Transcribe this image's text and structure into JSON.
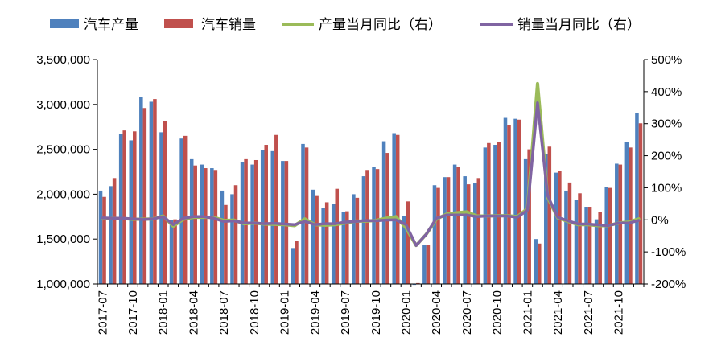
{
  "colors": {
    "production_bar": "#4F81BD",
    "sales_bar": "#C0504D",
    "production_yoy_line": "#9BBB59",
    "sales_yoy_line": "#8064A2",
    "axis": "#000000"
  },
  "chart_data": {
    "type": "bar",
    "legend": [
      "汽车产量",
      "汽车销量",
      "产量当月同比（右）",
      "销量当月同比（右）"
    ],
    "legend_position": "top",
    "grid": false,
    "y_left": {
      "min": 1000000,
      "max": 3500000,
      "step": 500000,
      "tick_labels": [
        "1,000,000",
        "1,500,000",
        "2,000,000",
        "2,500,000",
        "3,000,000",
        "3,500,000"
      ]
    },
    "y_right": {
      "min": -200,
      "max": 500,
      "step": 100,
      "unit": "%",
      "tick_labels": [
        "-200%",
        "-100%",
        "0%",
        "100%",
        "200%",
        "300%",
        "400%",
        "500%"
      ]
    },
    "x_tick_labels": [
      "2017-07",
      "2017-10",
      "2018-01",
      "2018-04",
      "2018-07",
      "2018-10",
      "2019-01",
      "2019-04",
      "2019-07",
      "2019-10",
      "2020-01",
      "2020-04",
      "2020-07",
      "2020-10",
      "2021-01",
      "2021-04",
      "2021-07",
      "2021-10"
    ],
    "x_tick_every": 3,
    "categories": [
      "2017-07",
      "2017-08",
      "2017-09",
      "2017-10",
      "2017-11",
      "2017-12",
      "2018-01",
      "2018-02",
      "2018-03",
      "2018-04",
      "2018-05",
      "2018-06",
      "2018-07",
      "2018-08",
      "2018-09",
      "2018-10",
      "2018-11",
      "2018-12",
      "2019-01",
      "2019-02",
      "2019-03",
      "2019-04",
      "2019-05",
      "2019-06",
      "2019-07",
      "2019-08",
      "2019-09",
      "2019-10",
      "2019-11",
      "2019-12",
      "2020-01",
      "2020-02",
      "2020-03",
      "2020-04",
      "2020-05",
      "2020-06",
      "2020-07",
      "2020-08",
      "2020-09",
      "2020-10",
      "2020-11",
      "2020-12",
      "2021-01",
      "2021-02",
      "2021-03",
      "2021-04",
      "2021-05",
      "2021-06",
      "2021-07",
      "2021-08",
      "2021-09",
      "2021-10",
      "2021-11",
      "2021-12"
    ],
    "series": [
      {
        "name": "汽车产量",
        "kind": "bar",
        "axis": "left",
        "values": [
          2040000,
          2090000,
          2670000,
          2600000,
          3080000,
          3030000,
          2690000,
          1710000,
          2620000,
          2390000,
          2330000,
          2290000,
          2040000,
          2000000,
          2360000,
          2330000,
          2490000,
          2480000,
          2370000,
          1400000,
          2560000,
          2050000,
          1850000,
          1890000,
          1800000,
          2000000,
          2200000,
          2300000,
          2590000,
          2680000,
          1760000,
          990000,
          1430000,
          2100000,
          2190000,
          2330000,
          2200000,
          2120000,
          2520000,
          2550000,
          2850000,
          2840000,
          2390000,
          1500000,
          2450000,
          2240000,
          2040000,
          1940000,
          1860000,
          1720000,
          2080000,
          2340000,
          2580000,
          2900000
        ]
      },
      {
        "name": "汽车销量",
        "kind": "bar",
        "axis": "left",
        "values": [
          1970000,
          2180000,
          2710000,
          2700000,
          2960000,
          3060000,
          2810000,
          1720000,
          2650000,
          2320000,
          2290000,
          2270000,
          1880000,
          2100000,
          2390000,
          2380000,
          2550000,
          2660000,
          2370000,
          1480000,
          2520000,
          1980000,
          1910000,
          2060000,
          1810000,
          1960000,
          2270000,
          2280000,
          2460000,
          2660000,
          1920000,
          1010000,
          1430000,
          2070000,
          2190000,
          2300000,
          2110000,
          2180000,
          2570000,
          2580000,
          2770000,
          2830000,
          2500000,
          1450000,
          2530000,
          2260000,
          2130000,
          2010000,
          1860000,
          1800000,
          2070000,
          2330000,
          2520000,
          2790000
        ]
      },
      {
        "name": "产量当月同比（右）",
        "kind": "line",
        "axis": "right",
        "values": [
          3,
          5,
          4,
          2,
          2,
          3,
          12,
          -20,
          2,
          8,
          8,
          8,
          -2,
          -1,
          -12,
          -10,
          -13,
          -14,
          -15,
          -18,
          3,
          -15,
          -17,
          -15,
          -10,
          -4,
          -4,
          -2,
          5,
          10,
          -25,
          -80,
          -45,
          2,
          18,
          22,
          25,
          12,
          12,
          13,
          13,
          10,
          35,
          425,
          70,
          6,
          -5,
          -15,
          -15,
          -18,
          -18,
          -10,
          -7,
          3
        ]
      },
      {
        "name": "销量当月同比（右）",
        "kind": "line",
        "axis": "right",
        "values": [
          6,
          5,
          5,
          3,
          1,
          3,
          10,
          -15,
          5,
          10,
          10,
          5,
          -5,
          -3,
          -10,
          -10,
          -12,
          -11,
          -13,
          -15,
          -5,
          -15,
          -12,
          -12,
          -7,
          -5,
          -2,
          -3,
          -1,
          0,
          -15,
          -80,
          -45,
          5,
          15,
          15,
          15,
          10,
          12,
          12,
          12,
          8,
          30,
          365,
          75,
          8,
          -3,
          -13,
          -13,
          -16,
          -18,
          -10,
          -10,
          -2
        ]
      }
    ]
  }
}
